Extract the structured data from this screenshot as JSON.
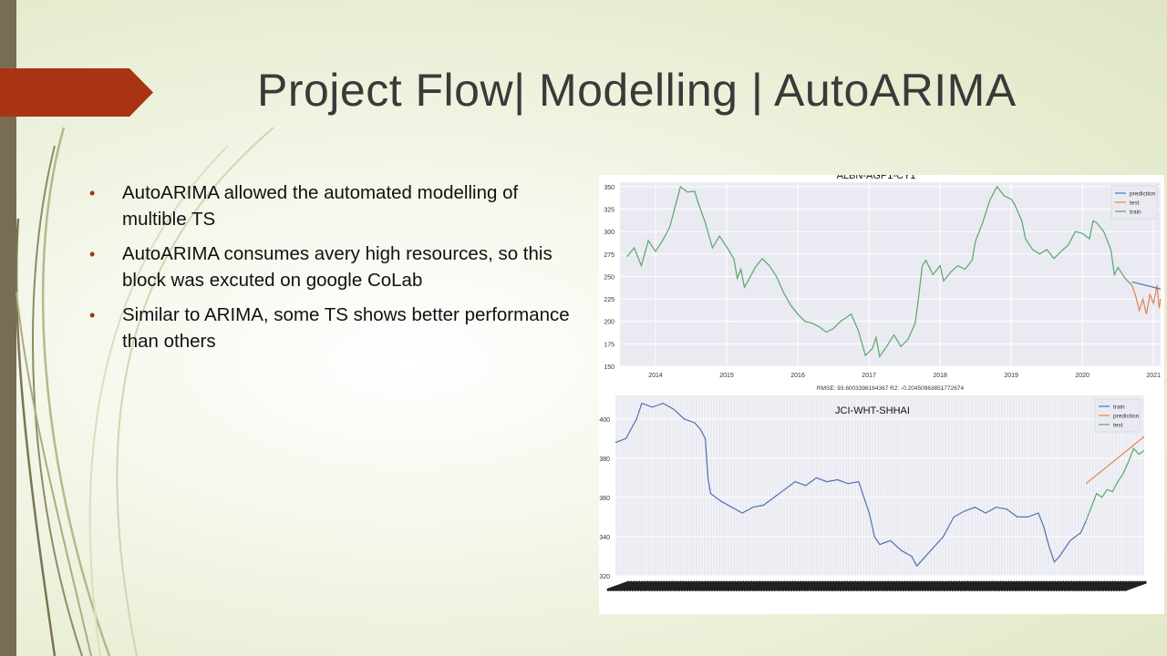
{
  "slide": {
    "title": "Project Flow| Modelling | AutoARIMA",
    "bullets": [
      "AutoARIMA allowed the automated modelling of multible TS",
      "AutoARIMA consumes avery high resources, so this block was excuted on google CoLab",
      "Similar to ARIMA, some TS shows better performance than others"
    ],
    "colors": {
      "accent": "#a0341a",
      "left_bar": "#786c52"
    }
  },
  "chart_data": [
    {
      "type": "line",
      "title": "ALBN-AGP1-CY1",
      "footer": "RMSE: 93.6003398164367 R2: -0.20450963851772674",
      "x_tick_labels": [
        "2014",
        "2015",
        "2016",
        "2017",
        "2018",
        "2019",
        "2020",
        "2021"
      ],
      "y_tick_labels": [
        "150",
        "175",
        "200",
        "225",
        "250",
        "275",
        "300",
        "325",
        "350"
      ],
      "xlim": [
        2013.5,
        2021.1
      ],
      "ylim": [
        150,
        355
      ],
      "legend": {
        "placement": "top-right",
        "labels": [
          "prediction",
          "test",
          "train"
        ]
      },
      "grid": true,
      "series": [
        {
          "name": "train",
          "color": "#55a868",
          "points": [
            [
              2013.6,
              272
            ],
            [
              2013.7,
              282
            ],
            [
              2013.8,
              262
            ],
            [
              2013.9,
              290
            ],
            [
              2014.0,
              278
            ],
            [
              2014.1,
              290
            ],
            [
              2014.2,
              305
            ],
            [
              2014.3,
              335
            ],
            [
              2014.35,
              350
            ],
            [
              2014.45,
              344
            ],
            [
              2014.55,
              345
            ],
            [
              2014.6,
              332
            ],
            [
              2014.7,
              310
            ],
            [
              2014.8,
              282
            ],
            [
              2014.9,
              295
            ],
            [
              2015.0,
              283
            ],
            [
              2015.1,
              270
            ],
            [
              2015.15,
              248
            ],
            [
              2015.2,
              258
            ],
            [
              2015.25,
              238
            ],
            [
              2015.3,
              245
            ],
            [
              2015.4,
              260
            ],
            [
              2015.5,
              270
            ],
            [
              2015.6,
              262
            ],
            [
              2015.7,
              250
            ],
            [
              2015.8,
              232
            ],
            [
              2015.9,
              218
            ],
            [
              2016.0,
              208
            ],
            [
              2016.1,
              200
            ],
            [
              2016.2,
              198
            ],
            [
              2016.3,
              194
            ],
            [
              2016.4,
              188
            ],
            [
              2016.5,
              192
            ],
            [
              2016.6,
              200
            ],
            [
              2016.75,
              208
            ],
            [
              2016.85,
              190
            ],
            [
              2016.95,
              162
            ],
            [
              2017.05,
              170
            ],
            [
              2017.1,
              182
            ],
            [
              2017.15,
              161
            ],
            [
              2017.25,
              172
            ],
            [
              2017.35,
              185
            ],
            [
              2017.45,
              172
            ],
            [
              2017.55,
              180
            ],
            [
              2017.65,
              198
            ],
            [
              2017.7,
              228
            ],
            [
              2017.75,
              262
            ],
            [
              2017.8,
              268
            ],
            [
              2017.9,
              252
            ],
            [
              2018.0,
              262
            ],
            [
              2018.05,
              245
            ],
            [
              2018.15,
              255
            ],
            [
              2018.25,
              262
            ],
            [
              2018.35,
              258
            ],
            [
              2018.45,
              268
            ],
            [
              2018.5,
              290
            ],
            [
              2018.6,
              310
            ],
            [
              2018.7,
              335
            ],
            [
              2018.8,
              350
            ],
            [
              2018.9,
              340
            ],
            [
              2019.0,
              336
            ],
            [
              2019.05,
              330
            ],
            [
              2019.15,
              312
            ],
            [
              2019.2,
              292
            ],
            [
              2019.3,
              280
            ],
            [
              2019.4,
              275
            ],
            [
              2019.5,
              280
            ],
            [
              2019.6,
              270
            ],
            [
              2019.7,
              278
            ],
            [
              2019.8,
              285
            ],
            [
              2019.9,
              300
            ],
            [
              2020.0,
              298
            ],
            [
              2020.1,
              292
            ],
            [
              2020.15,
              312
            ],
            [
              2020.2,
              310
            ],
            [
              2020.3,
              300
            ],
            [
              2020.4,
              280
            ],
            [
              2020.45,
              252
            ],
            [
              2020.5,
              260
            ],
            [
              2020.6,
              248
            ],
            [
              2020.7,
              240
            ]
          ]
        },
        {
          "name": "test",
          "color": "#dd8452",
          "points": [
            [
              2020.7,
              240
            ],
            [
              2020.75,
              228
            ],
            [
              2020.8,
              212
            ],
            [
              2020.85,
              225
            ],
            [
              2020.9,
              208
            ],
            [
              2020.95,
              230
            ],
            [
              2021.0,
              220
            ],
            [
              2021.05,
              240
            ],
            [
              2021.08,
              215
            ],
            [
              2021.1,
              225
            ]
          ]
        },
        {
          "name": "prediction",
          "color": "#4c72b0",
          "points": [
            [
              2020.7,
              244
            ],
            [
              2021.1,
              236
            ]
          ]
        }
      ]
    },
    {
      "type": "line",
      "title": "JCI-WHT-SHHAI",
      "y_tick_labels": [
        "320",
        "340",
        "360",
        "380",
        "400"
      ],
      "xlim": [
        0,
        100
      ],
      "ylim": [
        320,
        412
      ],
      "legend": {
        "placement": "top-right",
        "labels": [
          "train",
          "prediction",
          "test"
        ]
      },
      "grid": true,
      "series": [
        {
          "name": "train",
          "color": "#4c72b0",
          "points": [
            [
              0,
              388
            ],
            [
              2,
              390
            ],
            [
              4,
              400
            ],
            [
              5,
              408
            ],
            [
              7,
              406
            ],
            [
              9,
              408
            ],
            [
              11,
              405
            ],
            [
              13,
              400
            ],
            [
              15,
              398
            ],
            [
              16,
              395
            ],
            [
              17,
              390
            ],
            [
              17.5,
              370
            ],
            [
              18,
              362
            ],
            [
              20,
              358
            ],
            [
              22,
              355
            ],
            [
              24,
              352
            ],
            [
              26,
              355
            ],
            [
              28,
              356
            ],
            [
              30,
              360
            ],
            [
              32,
              364
            ],
            [
              34,
              368
            ],
            [
              36,
              366
            ],
            [
              38,
              370
            ],
            [
              40,
              368
            ],
            [
              42,
              369
            ],
            [
              44,
              367
            ],
            [
              46,
              368
            ],
            [
              47,
              360
            ],
            [
              48,
              352
            ],
            [
              49,
              340
            ],
            [
              50,
              336
            ],
            [
              52,
              338
            ],
            [
              54,
              333
            ],
            [
              56,
              330
            ],
            [
              57,
              325
            ],
            [
              58,
              328
            ],
            [
              60,
              334
            ],
            [
              62,
              340
            ],
            [
              64,
              350
            ],
            [
              66,
              353
            ],
            [
              68,
              355
            ],
            [
              70,
              352
            ],
            [
              72,
              355
            ],
            [
              74,
              354
            ],
            [
              76,
              350
            ],
            [
              78,
              350
            ],
            [
              80,
              352
            ],
            [
              81,
              345
            ],
            [
              82,
              335
            ],
            [
              83,
              327
            ],
            [
              84,
              330
            ],
            [
              86,
              338
            ],
            [
              88,
              342
            ],
            [
              89,
              348
            ]
          ]
        },
        {
          "name": "test",
          "color": "#55a868",
          "points": [
            [
              89,
              348
            ],
            [
              90,
              355
            ],
            [
              91,
              362
            ],
            [
              92,
              360
            ],
            [
              93,
              364
            ],
            [
              94,
              363
            ],
            [
              95,
              368
            ],
            [
              96,
              372
            ],
            [
              97,
              378
            ],
            [
              98,
              385
            ],
            [
              99,
              382
            ],
            [
              100,
              384
            ]
          ]
        },
        {
          "name": "prediction",
          "color": "#dd8452",
          "points": [
            [
              89,
              367
            ],
            [
              100,
              391
            ]
          ]
        }
      ]
    }
  ]
}
